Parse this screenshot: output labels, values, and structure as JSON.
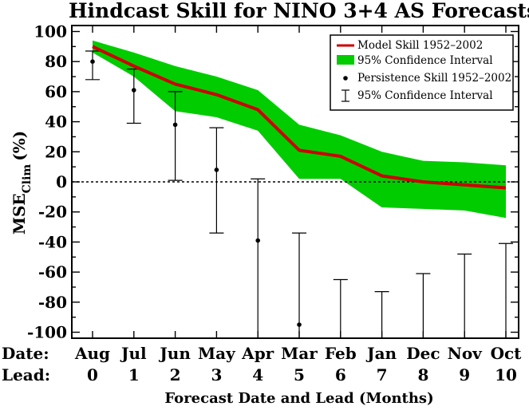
{
  "chart_data": {
    "type": "line",
    "title": "Hindcast Skill for NINO 3+4 AS Forecasts",
    "xlabel": "Forecast Date and Lead (Months)",
    "ylabel_main": "MSE",
    "ylabel_sub": "Clim",
    "ylabel_unit": "(%)",
    "row_labels": {
      "date": "Date:",
      "lead": "Lead:"
    },
    "categories": [
      "Aug",
      "Jul",
      "Jun",
      "May",
      "Apr",
      "Mar",
      "Feb",
      "Jan",
      "Dec",
      "Nov",
      "Oct"
    ],
    "leads": [
      "0",
      "1",
      "2",
      "3",
      "4",
      "5",
      "6",
      "7",
      "8",
      "9",
      "10"
    ],
    "ylim": [
      -105,
      105
    ],
    "yticks": [
      100,
      80,
      60,
      40,
      20,
      0,
      -20,
      -40,
      -60,
      -80,
      -100
    ],
    "zero_line": true,
    "legend_position": "top-right",
    "series": [
      {
        "name": "Model Skill 1952–2002",
        "color": "#cc0000",
        "values": [
          90,
          77,
          65,
          58,
          48,
          21,
          17,
          4,
          0,
          -2,
          -4
        ]
      },
      {
        "name": "95% Confidence Interval",
        "color": "#00cc00",
        "lower": [
          86,
          70,
          47,
          43,
          34,
          2,
          2,
          -17,
          -18,
          -19,
          -24
        ],
        "upper": [
          94,
          86,
          77,
          70,
          61,
          38,
          31,
          20,
          14,
          13,
          11
        ]
      },
      {
        "name": "Persistence Skill 1952–2002",
        "color": "#000000",
        "values": [
          80,
          61,
          38,
          8,
          -39,
          -95,
          null,
          null,
          null,
          null,
          null
        ]
      },
      {
        "name": "95% Confidence Interval",
        "color": "#000000",
        "lower": [
          68,
          39,
          1,
          -34,
          -110,
          -110,
          -110,
          -110,
          -110,
          -110,
          -110
        ],
        "upper": [
          87,
          75,
          60,
          36,
          2,
          -34,
          -65,
          -73,
          -61,
          -48,
          -41
        ]
      }
    ]
  }
}
